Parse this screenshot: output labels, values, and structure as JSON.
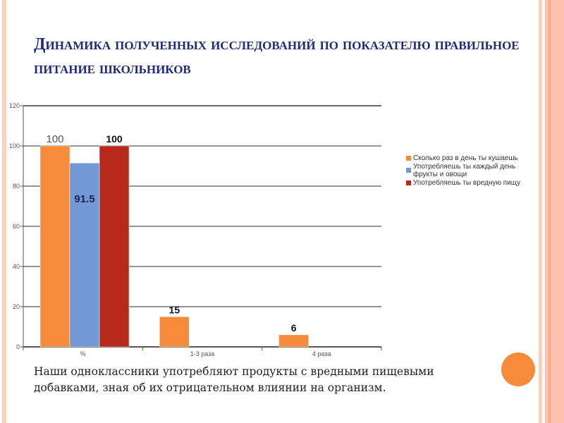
{
  "title": "Динамика полученных исследований по показателю правильное питание школьников",
  "caption": "Наши одноклассники употребляют продукты с вредными пищевыми добавками, зная об их отрицательном влиянии на организм.",
  "colors": {
    "accent": "#f68b3b",
    "title": "#1f2a7a",
    "border": "#fcc2ad"
  },
  "chart_data": {
    "type": "bar",
    "title": "",
    "xlabel": "",
    "ylabel": "",
    "ylim": [
      0,
      120
    ],
    "yticks": [
      "0",
      "20",
      "40",
      "60",
      "80",
      "100",
      "120"
    ],
    "categories": [
      "%",
      "1-3 раза",
      "4 раза"
    ],
    "series": [
      {
        "name": "Сколько раз в день ты кушаешь",
        "color": "#f68b3b",
        "values": [
          100,
          15,
          6
        ],
        "labels": [
          "100",
          "15",
          "6"
        ]
      },
      {
        "name": "Употребляешь ты каждый день фрукты и овощи",
        "color": "#7299d6",
        "values": [
          91.5,
          null,
          null
        ],
        "labels": [
          "91.5",
          null,
          null
        ]
      },
      {
        "name": "Употребляешь ты вредную пищу",
        "color": "#b52a18",
        "values": [
          100,
          null,
          null
        ],
        "labels": [
          "100",
          null,
          null
        ]
      }
    ],
    "grid": true,
    "legend": "right"
  }
}
